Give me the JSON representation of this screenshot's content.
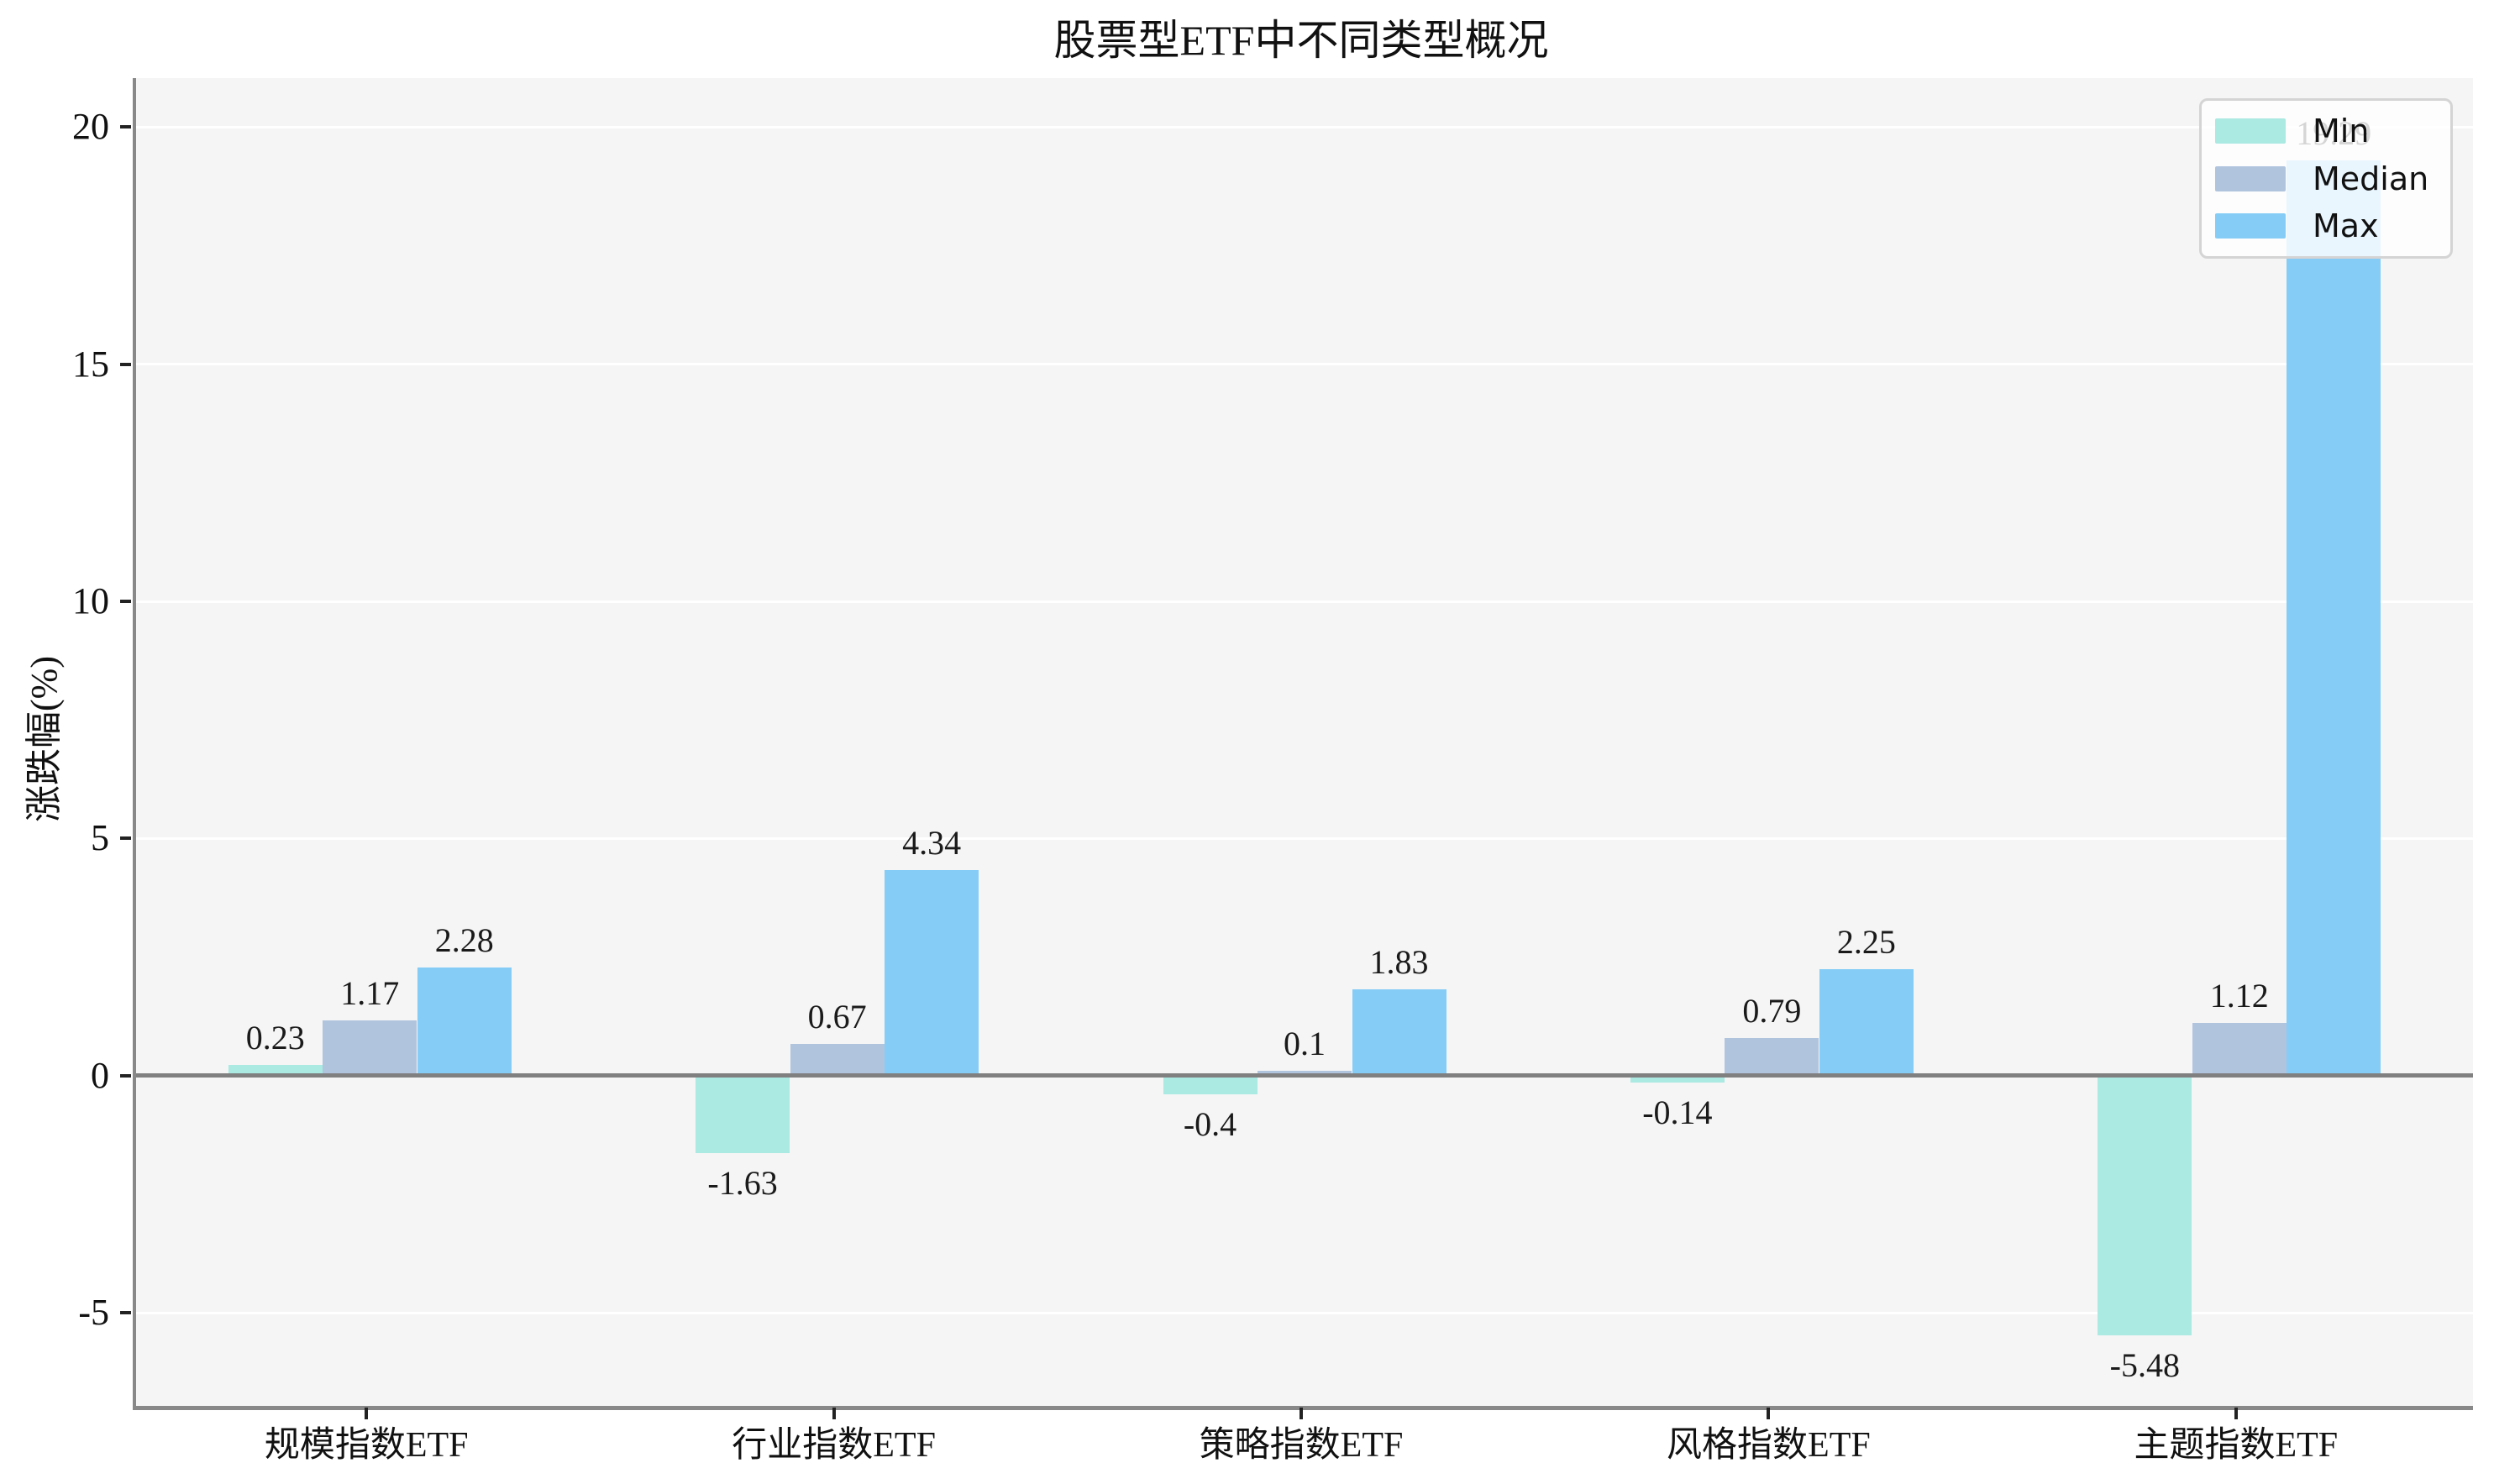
{
  "chart_data": {
    "type": "bar",
    "title": "股票型ETF中不同类型概况",
    "xlabel": "",
    "ylabel": "涨跌幅(%)",
    "categories": [
      "规模指数ETF",
      "行业指数ETF",
      "策略指数ETF",
      "风格指数ETF",
      "主题指数ETF"
    ],
    "series": [
      {
        "name": "Min",
        "color": "#abe9e3",
        "values": [
          0.23,
          -1.63,
          -0.4,
          -0.14,
          -5.48
        ]
      },
      {
        "name": "Median",
        "color": "#b0c4de",
        "values": [
          1.17,
          0.67,
          0.1,
          0.79,
          1.12
        ]
      },
      {
        "name": "Max",
        "color": "#85cdf6",
        "values": [
          2.28,
          4.34,
          1.83,
          2.25,
          19.29
        ]
      }
    ],
    "yticks": [
      20,
      15,
      10,
      5,
      0,
      -5
    ],
    "ylim": [
      -6.96,
      21.03
    ],
    "grid": true,
    "plot_background": "#f5f5f5",
    "gridline_color": "#ffffff",
    "zero_line_color": "#808080",
    "legend_position": "upper right",
    "legend_labels": [
      "Min",
      "Median",
      "Max"
    ]
  }
}
